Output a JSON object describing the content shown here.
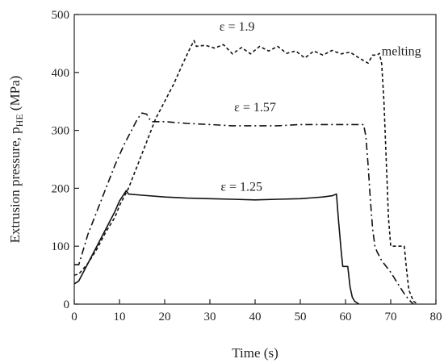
{
  "chart_data": {
    "type": "line",
    "xlabel": "Time (s)",
    "ylabel": "Extrusion pressure, pHE (MPa)",
    "ylabel_main": "Extrusion pressure, p",
    "ylabel_sub": "HE",
    "ylabel_unit": " (MPa)",
    "xlim": [
      0,
      80
    ],
    "ylim": [
      0,
      500
    ],
    "xticks": [
      0,
      10,
      20,
      30,
      40,
      50,
      60,
      70,
      80
    ],
    "yticks": [
      0,
      100,
      200,
      300,
      400,
      500
    ],
    "grid": false,
    "legend": "none",
    "series": [
      {
        "dash": "solid",
        "points": [
          [
            0,
            35
          ],
          [
            1,
            40
          ],
          [
            3,
            70
          ],
          [
            5,
            100
          ],
          [
            7,
            130
          ],
          [
            9,
            160
          ],
          [
            10,
            178
          ],
          [
            11,
            190
          ],
          [
            11.5,
            196
          ],
          [
            12,
            190
          ],
          [
            15,
            188
          ],
          [
            20,
            185
          ],
          [
            25,
            183
          ],
          [
            30,
            182
          ],
          [
            35,
            181
          ],
          [
            40,
            180
          ],
          [
            45,
            181
          ],
          [
            50,
            182
          ],
          [
            55,
            185
          ],
          [
            57,
            187
          ],
          [
            58,
            190
          ],
          [
            58.4,
            150
          ],
          [
            59,
            95
          ],
          [
            59.4,
            65
          ],
          [
            60.5,
            65
          ],
          [
            61,
            30
          ],
          [
            61.5,
            12
          ],
          [
            62,
            5
          ],
          [
            63,
            0
          ]
        ]
      },
      {
        "dash": "dash-dot",
        "points": [
          [
            0,
            68
          ],
          [
            1,
            68
          ],
          [
            3,
            120
          ],
          [
            5,
            160
          ],
          [
            7,
            200
          ],
          [
            9,
            240
          ],
          [
            11,
            275
          ],
          [
            13,
            305
          ],
          [
            14,
            320
          ],
          [
            15,
            330
          ],
          [
            16,
            328
          ],
          [
            17,
            315
          ],
          [
            18,
            315
          ],
          [
            20,
            315
          ],
          [
            25,
            312
          ],
          [
            30,
            310
          ],
          [
            35,
            308
          ],
          [
            40,
            308
          ],
          [
            45,
            308
          ],
          [
            50,
            310
          ],
          [
            55,
            310
          ],
          [
            60,
            310
          ],
          [
            64,
            310
          ],
          [
            64.5,
            290
          ],
          [
            65,
            240
          ],
          [
            65.5,
            180
          ],
          [
            66,
            130
          ],
          [
            66.5,
            100
          ],
          [
            67,
            90
          ],
          [
            68,
            75
          ],
          [
            70,
            55
          ],
          [
            72,
            30
          ],
          [
            73,
            18
          ],
          [
            74,
            8
          ],
          [
            75,
            0
          ]
        ]
      },
      {
        "dash": "dotted",
        "points": [
          [
            0,
            50
          ],
          [
            1,
            52
          ],
          [
            3,
            70
          ],
          [
            5,
            95
          ],
          [
            7,
            125
          ],
          [
            9,
            150
          ],
          [
            10,
            170
          ],
          [
            12,
            200
          ],
          [
            14,
            240
          ],
          [
            16,
            280
          ],
          [
            18,
            320
          ],
          [
            20,
            350
          ],
          [
            22,
            380
          ],
          [
            24,
            415
          ],
          [
            25.5,
            440
          ],
          [
            26.5,
            455
          ],
          [
            27,
            445
          ],
          [
            29,
            447
          ],
          [
            31,
            442
          ],
          [
            33,
            448
          ],
          [
            35,
            432
          ],
          [
            37,
            443
          ],
          [
            39,
            432
          ],
          [
            41,
            445
          ],
          [
            43,
            437
          ],
          [
            45,
            445
          ],
          [
            47,
            433
          ],
          [
            49,
            437
          ],
          [
            51,
            425
          ],
          [
            53,
            437
          ],
          [
            55,
            430
          ],
          [
            57,
            438
          ],
          [
            59,
            432
          ],
          [
            61,
            435
          ],
          [
            63,
            425
          ],
          [
            65,
            416
          ],
          [
            66,
            430
          ],
          [
            67,
            430
          ],
          [
            67.5,
            433
          ],
          [
            68,
            415
          ],
          [
            68.5,
            350
          ],
          [
            69,
            250
          ],
          [
            69.5,
            150
          ],
          [
            70,
            100
          ],
          [
            70.5,
            100
          ],
          [
            72,
            100
          ],
          [
            73,
            100
          ],
          [
            73.5,
            60
          ],
          [
            74,
            25
          ],
          [
            75,
            5
          ],
          [
            76,
            0
          ]
        ]
      }
    ],
    "annotations": [
      {
        "text": "ε = 1.9",
        "x": 36,
        "y": 472,
        "anchor": "middle"
      },
      {
        "text": "melting",
        "x": 68,
        "y": 430,
        "anchor": "start"
      },
      {
        "text": "ε = 1.57",
        "x": 40,
        "y": 333,
        "anchor": "middle"
      },
      {
        "text": "ε = 1.25",
        "x": 37,
        "y": 196,
        "anchor": "middle"
      }
    ]
  }
}
